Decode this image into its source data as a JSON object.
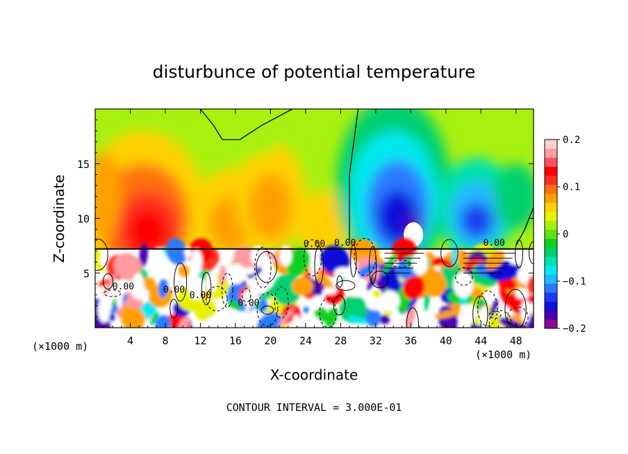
{
  "chart_data": {
    "type": "heatmap",
    "title": "disturbunce of potential temperature",
    "xlabel": "X-coordinate",
    "ylabel": "Z-coordinate",
    "x_unit": "(×1000 m)",
    "y_unit": "(×1000 m)",
    "xlim": [
      0,
      50
    ],
    "ylim": [
      0,
      20
    ],
    "x_ticks": [
      4,
      8,
      12,
      16,
      20,
      24,
      28,
      32,
      36,
      40,
      44,
      48
    ],
    "y_ticks": [
      5,
      10,
      15
    ],
    "colorbar": {
      "range": [
        -0.2,
        0.2
      ],
      "tick_values": [
        0.2,
        0.1,
        0,
        -0.1,
        -0.2
      ],
      "tick_labels": [
        "0.2",
        "0.1",
        "0",
        "−0.1",
        "−0.2"
      ],
      "colors": [
        "#8a0a9a",
        "#4a00b0",
        "#1010d8",
        "#1a3cf0",
        "#2a7cff",
        "#20b8ff",
        "#00e8f0",
        "#00e0b0",
        "#00d070",
        "#10d020",
        "#60e010",
        "#a8f010",
        "#e8f000",
        "#ffd000",
        "#ffa000",
        "#ff7010",
        "#ff3020",
        "#ff0000",
        "#ff5060",
        "#ff9aa0",
        "#ffd0d0"
      ]
    },
    "contour_labels": [
      "0.00",
      "0.00",
      "0.00",
      "0.00",
      "0.00",
      "0.00",
      "0.00"
    ],
    "contour_interval_text": "CONTOUR INTERVAL = 3.000E-01",
    "features": {
      "positive_lobes": [
        {
          "x": 5.5,
          "z": 9.5,
          "value": 0.15
        },
        {
          "x": 15,
          "z": 9.5,
          "value": 0.08
        },
        {
          "x": 20,
          "z": 11,
          "value": 0.07
        }
      ],
      "negative_lobes": [
        {
          "x": 34,
          "z": 11,
          "value": -0.17
        },
        {
          "x": 43.5,
          "z": 10.5,
          "value": -0.13
        }
      ],
      "zero_contour_upper": [
        [
          12,
          20
        ],
        [
          13.5,
          18.5
        ],
        [
          14.5,
          17.2
        ],
        [
          16.5,
          17.2
        ],
        [
          19,
          18.5
        ],
        [
          22.5,
          20
        ]
      ],
      "zero_contour_right": [
        [
          30,
          20
        ],
        [
          29,
          14
        ],
        [
          29,
          8
        ]
      ],
      "zero_contour_far_right": [
        [
          50,
          11
        ],
        [
          49,
          9
        ],
        [
          48,
          7.5
        ]
      ],
      "layer_boundary_z": 7.2
    }
  }
}
